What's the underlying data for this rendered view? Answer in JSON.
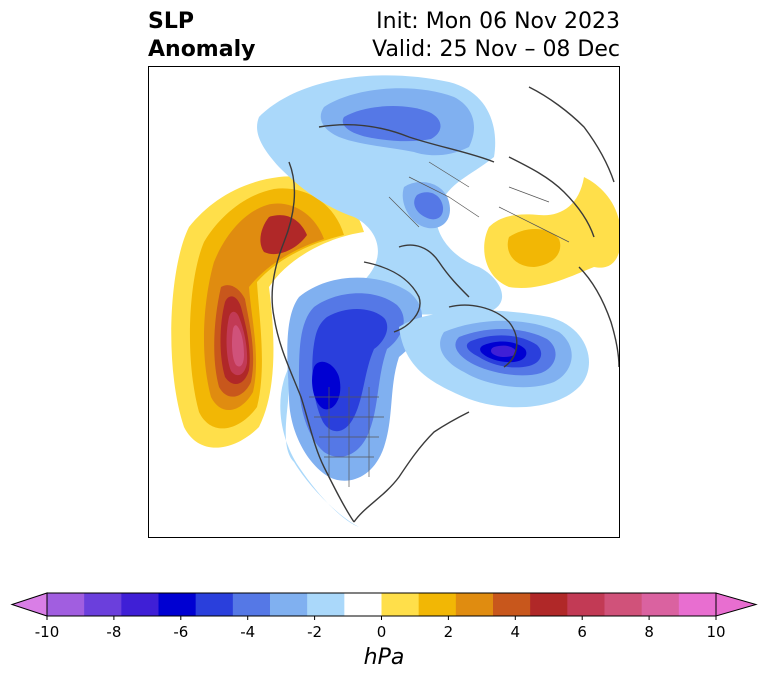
{
  "title": {
    "variable_line1": "SLP",
    "variable_line2": "Anomaly",
    "init": "Init: Mon 06 Nov 2023",
    "valid": "Valid: 25 Nov – 08 Dec"
  },
  "map": {
    "projection": "north-polar-stereographic",
    "region": "Northern Hemisphere",
    "features": [
      "coastlines",
      "country-borders",
      "us-state-borders"
    ]
  },
  "colorbar": {
    "label": "hPa",
    "ticks": [
      "-10",
      "-8",
      "-6",
      "-4",
      "-2",
      "0",
      "2",
      "4",
      "6",
      "8",
      "10"
    ],
    "extend": "both",
    "levels": [
      {
        "range": "< -10",
        "color": "#d97ee6"
      },
      {
        "range": "-10 to -9",
        "color": "#a15ee0"
      },
      {
        "range": "-9 to -8",
        "color": "#6b3fdc"
      },
      {
        "range": "-8 to -7",
        "color": "#3f1fd6"
      },
      {
        "range": "-7 to -6",
        "color": "#0000d2"
      },
      {
        "range": "-6 to -5",
        "color": "#2a3fdc"
      },
      {
        "range": "-5 to -4",
        "color": "#5578e6"
      },
      {
        "range": "-4 to -3",
        "color": "#80b0f0"
      },
      {
        "range": "-3 to -2",
        "color": "#aad8fa"
      },
      {
        "range": "-1 to 1",
        "color": "#ffffff"
      },
      {
        "range": "1 to 2",
        "color": "#ffdf4a"
      },
      {
        "range": "2 to 3",
        "color": "#f2b705"
      },
      {
        "range": "3 to 4",
        "color": "#e08c10"
      },
      {
        "range": "4 to 5",
        "color": "#c8571c"
      },
      {
        "range": "5 to 6",
        "color": "#b02828"
      },
      {
        "range": "6 to 7",
        "color": "#c23a55"
      },
      {
        "range": "7 to 8",
        "color": "#d0527a"
      },
      {
        "range": "8 to 9",
        "color": "#da62a0"
      },
      {
        "range": "9 to 10",
        "color": "#e86ed0"
      },
      {
        "range": "> 10",
        "color": "#e86ed0"
      }
    ]
  }
}
